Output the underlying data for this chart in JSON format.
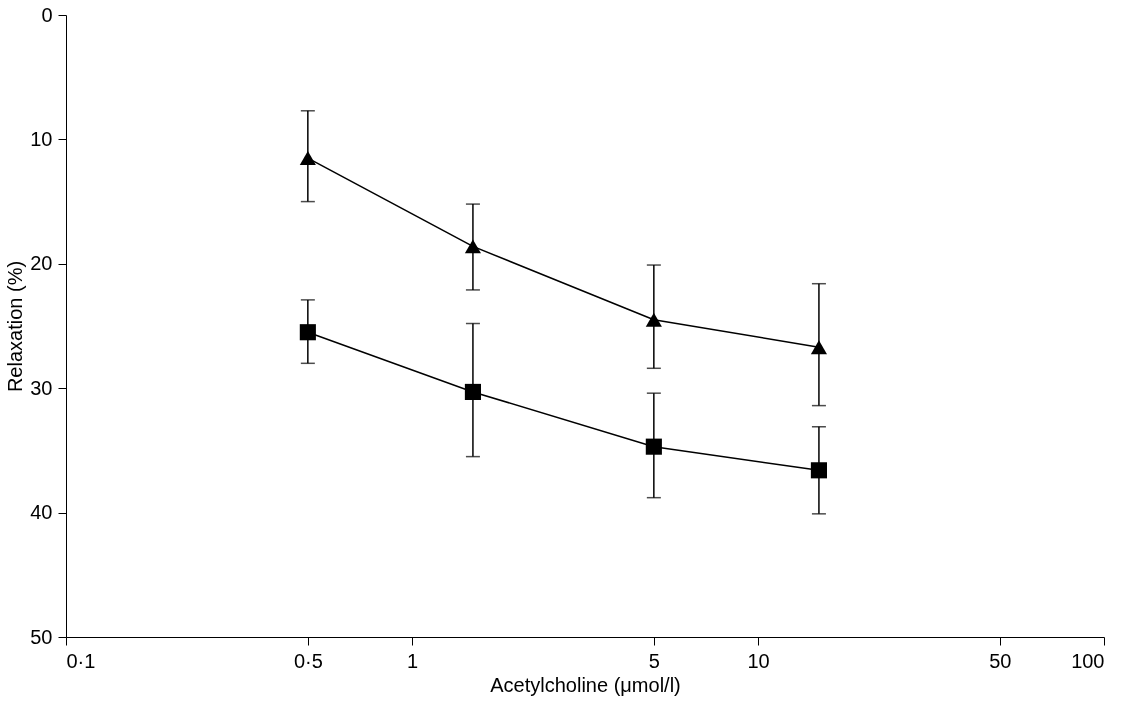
{
  "chart_data": {
    "type": "line",
    "xlabel": "Acetylcholine (μmol/l)",
    "ylabel": "Relaxation (%)",
    "log": "x",
    "grid": false,
    "line_style": "solid",
    "xlim": [
      0.1,
      100
    ],
    "xticks": [
      {
        "value": 0.1,
        "label": "0·1"
      },
      {
        "value": 0.5,
        "label": "0·5"
      },
      1,
      5,
      10,
      50,
      100
    ],
    "ylim": [
      50,
      0
    ],
    "yticks": [
      0,
      10,
      20,
      30,
      40,
      50
    ],
    "x": [
      0.5,
      1.5,
      5,
      15
    ],
    "series": [
      {
        "color": "#000000",
        "marker": "triangle",
        "values": [
          11.5,
          18.6,
          24.5,
          26.7
        ],
        "errors": [
          [
            7.7,
            15
          ],
          [
            15.2,
            22.1
          ],
          [
            20.1,
            28.4
          ],
          [
            21.6,
            31.4
          ]
        ]
      },
      {
        "color": "#000000",
        "marker": "square",
        "values": [
          25.5,
          30.3,
          34.7,
          36.6
        ],
        "errors": [
          [
            22.9,
            28
          ],
          [
            24.8,
            35.5
          ],
          [
            30.4,
            38.8
          ],
          [
            33.1,
            40.1
          ]
        ]
      }
    ]
  }
}
